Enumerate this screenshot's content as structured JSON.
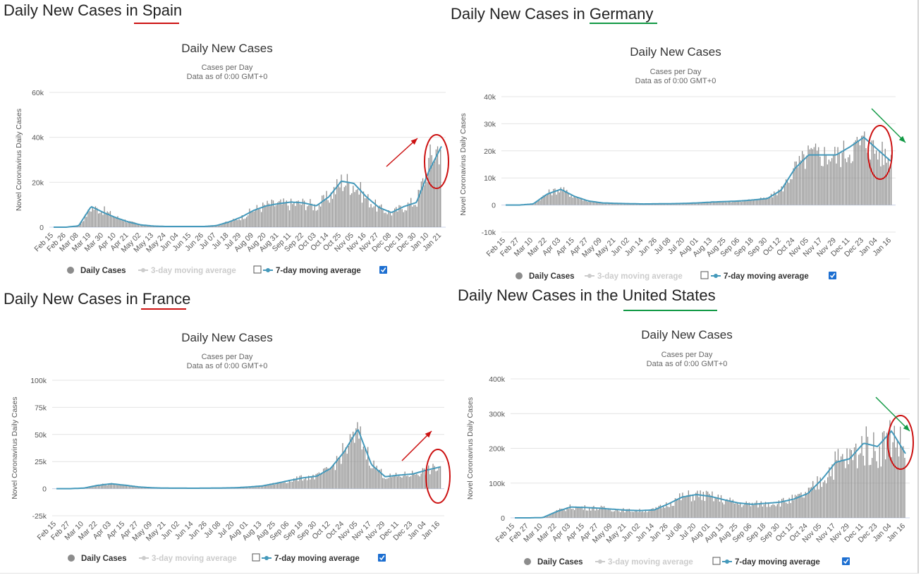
{
  "colors": {
    "bars": "#8c8c8c",
    "line": "#4499bb",
    "grid": "#e4e4e4",
    "red": "#cc1111",
    "green": "#119944",
    "checkbox": "#1d6fd1"
  },
  "panels": [
    {
      "id": "spain",
      "heading_prefix": "Daily New Cases in ",
      "country": "Spain",
      "accent": "red",
      "title": "Daily New Cases",
      "subtitle": "Cases per Day",
      "subtitle2": "Data as of 0:00 GMT+0",
      "ylabel": "Novel Coronavirus Daily Cases",
      "yticks": [
        "60k",
        "40k",
        "20k",
        "0"
      ],
      "xticks": [
        "Feb 15",
        "Feb 26",
        "Mar 08",
        "Mar 19",
        "Mar 30",
        "Apr 10",
        "Apr 21",
        "May 02",
        "May 13",
        "May 24",
        "Jun 04",
        "Jun 15",
        "Jun 26",
        "Jul 07",
        "Jul 18",
        "Jul 29",
        "Aug 09",
        "Aug 20",
        "Aug 31",
        "Sep 11",
        "Sep 22",
        "Oct 03",
        "Oct 14",
        "Oct 25",
        "Nov 05",
        "Nov 16",
        "Nov 27",
        "Dec 08",
        "Dec 19",
        "Dec 30",
        "Jan 10",
        "Jan 21"
      ],
      "legend": {
        "daily": "Daily Cases",
        "ma3": "3-day moving average",
        "ma7": "7-day moving average"
      }
    },
    {
      "id": "germany",
      "heading_prefix": "Daily New Cases in ",
      "country": "Germany",
      "accent": "green",
      "title": "Daily New Cases",
      "subtitle": "Cases per Day",
      "subtitle2": "Data as of 0:00 GMT+0",
      "ylabel": "Novel Coronavirus Daily Cases",
      "yticks": [
        "40k",
        "30k",
        "20k",
        "10k",
        "0",
        "-10k"
      ],
      "xticks": [
        "Feb 15",
        "Feb 27",
        "Mar 10",
        "Mar 22",
        "Apr 03",
        "Apr 15",
        "Apr 27",
        "May 09",
        "May 21",
        "Jun 02",
        "Jun 14",
        "Jun 26",
        "Jul 08",
        "Jul 20",
        "Aug 01",
        "Aug 13",
        "Aug 25",
        "Sep 06",
        "Sep 18",
        "Sep 30",
        "Oct 12",
        "Oct 24",
        "Nov 05",
        "Nov 17",
        "Nov 29",
        "Dec 11",
        "Dec 23",
        "Jan 04",
        "Jan 16"
      ],
      "legend": {
        "daily": "Daily Cases",
        "ma3": "3-day moving average",
        "ma7": "7-day moving average"
      }
    },
    {
      "id": "france",
      "heading_prefix": "Daily New Cases in ",
      "country": "France",
      "accent": "red",
      "title": "Daily New Cases",
      "subtitle": "Cases per Day",
      "subtitle2": "Data as of 0:00 GMT+0",
      "ylabel": "Novel Coronavirus Daily Cases",
      "yticks": [
        "100k",
        "75k",
        "50k",
        "25k",
        "0",
        "-25k"
      ],
      "xticks": [
        "Feb 15",
        "Feb 27",
        "Mar 10",
        "Mar 22",
        "Apr 03",
        "Apr 15",
        "Apr 27",
        "May 09",
        "May 21",
        "Jun 02",
        "Jun 14",
        "Jun 26",
        "Jul 08",
        "Jul 20",
        "Aug 01",
        "Aug 13",
        "Aug 25",
        "Sep 06",
        "Sep 18",
        "Sep 30",
        "Oct 12",
        "Oct 24",
        "Nov 05",
        "Nov 17",
        "Nov 29",
        "Dec 11",
        "Dec 23",
        "Jan 04",
        "Jan 16"
      ],
      "legend": {
        "daily": "Daily Cases",
        "ma3": "3-day moving average",
        "ma7": "7-day moving average"
      }
    },
    {
      "id": "us",
      "heading_prefix": "Daily New Cases in the ",
      "country": "United States",
      "accent": "green",
      "title": "Daily New Cases",
      "subtitle": "Cases per Day",
      "subtitle2": "Data as of 0:00 GMT+0",
      "ylabel": "Novel Coronavirus Daily Cases",
      "yticks": [
        "400k",
        "300k",
        "200k",
        "100k",
        "0"
      ],
      "xticks": [
        "Feb 15",
        "Feb 27",
        "Mar 10",
        "Mar 22",
        "Apr 03",
        "Apr 15",
        "Apr 27",
        "May 09",
        "May 21",
        "Jun 02",
        "Jun 14",
        "Jun 26",
        "Jul 08",
        "Jul 20",
        "Aug 01",
        "Aug 13",
        "Aug 25",
        "Sep 06",
        "Sep 18",
        "Sep 30",
        "Oct 12",
        "Oct 24",
        "Nov 05",
        "Nov 17",
        "Nov 29",
        "Dec 11",
        "Dec 23",
        "Jan 04",
        "Jan 16"
      ],
      "legend": {
        "daily": "Daily Cases",
        "ma3": "3-day moving average",
        "ma7": "7-day moving average"
      }
    }
  ],
  "chart_data": [
    {
      "type": "bar",
      "country": "Spain",
      "title": "Daily New Cases",
      "xlabel": "",
      "ylabel": "Novel Coronavirus Daily Cases",
      "ylim": [
        0,
        60000
      ],
      "legend": "bottom",
      "grid": true,
      "x": [
        "Feb 15",
        "Feb 26",
        "Mar 08",
        "Mar 19",
        "Mar 30",
        "Apr 10",
        "Apr 21",
        "May 02",
        "May 13",
        "May 24",
        "Jun 04",
        "Jun 15",
        "Jun 26",
        "Jul 07",
        "Jul 18",
        "Jul 29",
        "Aug 09",
        "Aug 20",
        "Aug 31",
        "Sep 11",
        "Sep 22",
        "Oct 03",
        "Oct 14",
        "Oct 25",
        "Nov 05",
        "Nov 16",
        "Nov 27",
        "Dec 08",
        "Dec 19",
        "Dec 30",
        "Jan 10",
        "Jan 21"
      ],
      "series": [
        {
          "name": "Daily Cases",
          "values": [
            0,
            0,
            800,
            9000,
            7500,
            4500,
            2500,
            1000,
            500,
            300,
            300,
            300,
            300,
            800,
            2500,
            4500,
            8000,
            10000,
            10500,
            10500,
            11000,
            9500,
            14000,
            21000,
            19500,
            13000,
            8500,
            6500,
            9500,
            12000,
            30000,
            40000
          ]
        },
        {
          "name": "7-day moving average",
          "values": [
            0,
            0,
            600,
            9200,
            6500,
            4200,
            2300,
            1000,
            500,
            300,
            300,
            300,
            300,
            700,
            2300,
            4500,
            7500,
            9500,
            10500,
            11200,
            10800,
            9500,
            13500,
            20500,
            19500,
            13500,
            8800,
            6500,
            9200,
            11000,
            25000,
            36000
          ]
        }
      ]
    },
    {
      "type": "bar",
      "country": "Germany",
      "title": "Daily New Cases",
      "xlabel": "",
      "ylabel": "Novel Coronavirus Daily Cases",
      "ylim": [
        -10000,
        40000
      ],
      "legend": "bottom",
      "grid": true,
      "x": [
        "Feb 15",
        "Feb 27",
        "Mar 10",
        "Mar 22",
        "Apr 03",
        "Apr 15",
        "Apr 27",
        "May 09",
        "May 21",
        "Jun 02",
        "Jun 14",
        "Jun 26",
        "Jul 08",
        "Jul 20",
        "Aug 01",
        "Aug 13",
        "Aug 25",
        "Sep 06",
        "Sep 18",
        "Sep 30",
        "Oct 12",
        "Oct 24",
        "Nov 05",
        "Nov 17",
        "Nov 29",
        "Dec 11",
        "Dec 23",
        "Jan 04",
        "Jan 16"
      ],
      "series": [
        {
          "name": "Daily Cases",
          "values": [
            0,
            0,
            500,
            4500,
            6000,
            3000,
            1500,
            800,
            600,
            500,
            400,
            500,
            500,
            600,
            800,
            1200,
            1300,
            1500,
            2000,
            2500,
            6000,
            14000,
            19000,
            19000,
            18500,
            21000,
            24000,
            20000,
            17000
          ]
        },
        {
          "name": "7-day moving average",
          "values": [
            0,
            0,
            400,
            4000,
            5800,
            3200,
            1500,
            800,
            600,
            500,
            400,
            450,
            500,
            600,
            800,
            1100,
            1300,
            1500,
            1900,
            2400,
            5500,
            13500,
            18500,
            18500,
            18500,
            21500,
            25000,
            20500,
            16000
          ]
        }
      ]
    },
    {
      "type": "bar",
      "country": "France",
      "title": "Daily New Cases",
      "xlabel": "",
      "ylabel": "Novel Coronavirus Daily Cases",
      "ylim": [
        -25000,
        100000
      ],
      "legend": "bottom",
      "grid": true,
      "x": [
        "Feb 15",
        "Feb 27",
        "Mar 10",
        "Mar 22",
        "Apr 03",
        "Apr 15",
        "Apr 27",
        "May 09",
        "May 21",
        "Jun 02",
        "Jun 14",
        "Jun 26",
        "Jul 08",
        "Jul 20",
        "Aug 01",
        "Aug 13",
        "Aug 25",
        "Sep 06",
        "Sep 18",
        "Sep 30",
        "Oct 12",
        "Oct 24",
        "Nov 05",
        "Nov 17",
        "Nov 29",
        "Dec 11",
        "Dec 23",
        "Jan 04",
        "Jan 16"
      ],
      "series": [
        {
          "name": "Daily Cases",
          "values": [
            0,
            0,
            600,
            3500,
            4500,
            3000,
            1500,
            800,
            500,
            500,
            400,
            500,
            600,
            800,
            1500,
            2500,
            5000,
            7500,
            10500,
            11500,
            19000,
            36000,
            52000,
            24000,
            11000,
            12000,
            14000,
            17000,
            20000
          ]
        },
        {
          "name": "7-day moving average",
          "values": [
            0,
            0,
            500,
            3000,
            4500,
            3200,
            1600,
            800,
            500,
            450,
            400,
            450,
            600,
            800,
            1500,
            2500,
            4800,
            7500,
            10000,
            11500,
            18500,
            34000,
            55000,
            22000,
            11000,
            12500,
            13500,
            17000,
            20000
          ]
        }
      ]
    },
    {
      "type": "bar",
      "country": "United States",
      "title": "Daily New Cases",
      "xlabel": "",
      "ylabel": "Novel Coronavirus Daily Cases",
      "ylim": [
        0,
        400000
      ],
      "legend": "bottom",
      "grid": true,
      "x": [
        "Feb 15",
        "Feb 27",
        "Mar 10",
        "Mar 22",
        "Apr 03",
        "Apr 15",
        "Apr 27",
        "May 09",
        "May 21",
        "Jun 02",
        "Jun 14",
        "Jun 26",
        "Jul 08",
        "Jul 20",
        "Aug 01",
        "Aug 13",
        "Aug 25",
        "Sep 06",
        "Sep 18",
        "Sep 30",
        "Oct 12",
        "Oct 24",
        "Nov 05",
        "Nov 17",
        "Nov 29",
        "Dec 11",
        "Dec 23",
        "Jan 04",
        "Jan 16"
      ],
      "series": [
        {
          "name": "Daily Cases",
          "values": [
            0,
            0,
            1000,
            20000,
            32000,
            30000,
            29000,
            25000,
            22000,
            21000,
            24000,
            42000,
            62000,
            68000,
            63000,
            52000,
            42000,
            40000,
            42000,
            46000,
            55000,
            72000,
            115000,
            165000,
            175000,
            215000,
            200000,
            245000,
            200000
          ]
        },
        {
          "name": "7-day moving average",
          "values": [
            0,
            0,
            800,
            18000,
            31000,
            30000,
            28000,
            25000,
            22000,
            21000,
            23000,
            40000,
            60000,
            67000,
            62000,
            52000,
            43000,
            39000,
            42000,
            45000,
            54000,
            70000,
            110000,
            160000,
            170000,
            215000,
            205000,
            250000,
            185000
          ]
        }
      ]
    }
  ]
}
